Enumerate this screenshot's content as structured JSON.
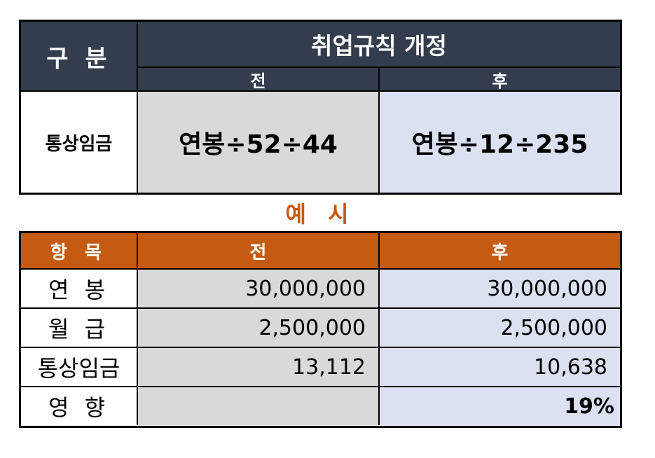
{
  "top": {
    "gubun": "구 분",
    "title": "취업규칙 개정",
    "before": "전",
    "after": "후",
    "row_label": "통상임금",
    "before_value": "연봉÷52÷44",
    "after_value": "연봉÷12÷235"
  },
  "example": {
    "title": "예 시",
    "headers": {
      "item": "항 목",
      "before": "전",
      "after": "후"
    },
    "rows": [
      {
        "label": "연 봉",
        "before": "30,000,000",
        "after": "30,000,000"
      },
      {
        "label": "월 급",
        "before": "2,500,000",
        "after": "2,500,000"
      },
      {
        "label": "통상임금",
        "before": "13,112",
        "after": "10,638"
      },
      {
        "label": "영 향",
        "before": "",
        "after": "19%"
      }
    ]
  },
  "colors": {
    "header_dark": "#333d4d",
    "header_orange": "#c55a11",
    "before_fill": "#d9d9d9",
    "after_fill": "#dce1f2",
    "example_title": "#c55a11"
  }
}
